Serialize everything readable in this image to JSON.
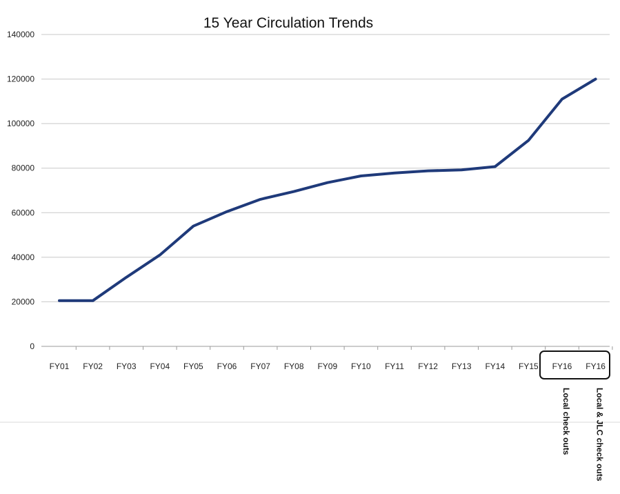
{
  "chart_data": {
    "type": "line",
    "title": "15 Year Circulation Trends",
    "xlabel": "",
    "ylabel": "",
    "ylim": [
      0,
      140000
    ],
    "yticks": [
      0,
      20000,
      40000,
      60000,
      80000,
      100000,
      120000,
      140000
    ],
    "grid": true,
    "legend": "none",
    "categories": [
      "FY01",
      "FY02",
      "FY03",
      "FY04",
      "FY05",
      "FY06",
      "FY07",
      "FY08",
      "FY09",
      "FY10",
      "FY11",
      "FY12",
      "FY13",
      "FY14",
      "FY15",
      "FY16",
      "FY16"
    ],
    "series": [
      {
        "values": [
          20500,
          20500,
          31000,
          41000,
          54000,
          60500,
          66000,
          69500,
          73500,
          76500,
          77800,
          78800,
          79200,
          80700,
          92500,
          111000,
          120000
        ]
      }
    ],
    "annotations": [
      {
        "text": "Local check outs",
        "category_index": 15
      },
      {
        "text": "Local & JLC  check outs",
        "category_index": 16
      }
    ],
    "colors": {
      "line": "#1f3a7a",
      "grid": "#c8c8c8",
      "box": "#111111"
    }
  }
}
